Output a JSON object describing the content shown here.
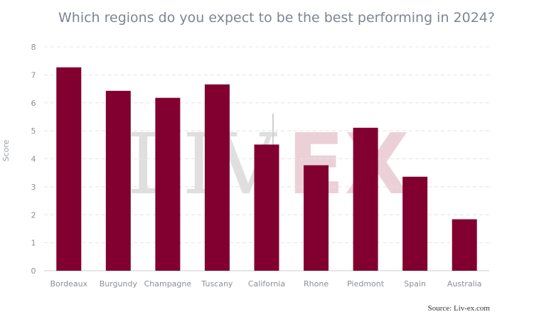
{
  "title": "Which regions do you expect to be the best performing in 2024?",
  "source": "Source: Liv-ex.com",
  "watermark": {
    "left": "LIV",
    "right": "EX"
  },
  "colors": {
    "bar": "#820030",
    "title": "#7d8591"
  },
  "chart_data": {
    "type": "bar",
    "title": "Which regions do you expect to be the best performing in 2024?",
    "xlabel": "",
    "ylabel": "Score",
    "ylim": [
      0,
      8
    ],
    "yticks": [
      0,
      1,
      2,
      3,
      4,
      5,
      6,
      7,
      8
    ],
    "categories": [
      "Bordeaux",
      "Burgundy",
      "Champagne",
      "Tuscany",
      "California",
      "Rhone",
      "Piedmont",
      "Spain",
      "Australia"
    ],
    "values": [
      7.27,
      6.43,
      6.18,
      6.66,
      4.51,
      3.77,
      5.11,
      3.36,
      1.84
    ],
    "grid": true,
    "legend": "none"
  }
}
